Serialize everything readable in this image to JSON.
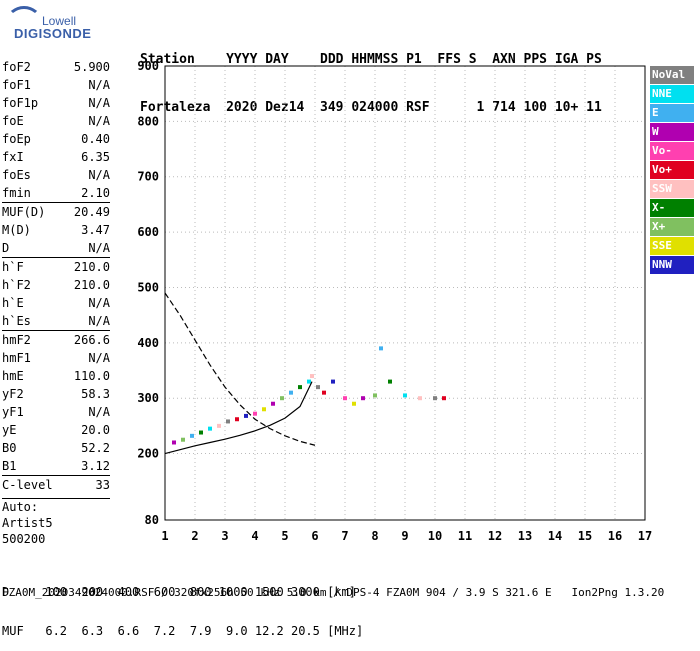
{
  "logo": {
    "line1": "Lowell",
    "line2": "DIGISONDE"
  },
  "header": {
    "row1": "Station    YYYY DAY    DDD HHMMSS P1  FFS S  AXN PPS IGA PS",
    "row2": "Fortaleza  2020 Dez14  349 024000 RSF      1 714 100 10+ 11"
  },
  "params": [
    {
      "label": "foF2",
      "value": "5.900"
    },
    {
      "label": "foF1",
      "value": "N/A"
    },
    {
      "label": "foF1p",
      "value": "N/A"
    },
    {
      "label": "foE",
      "value": "N/A"
    },
    {
      "label": "foEp",
      "value": "0.40"
    },
    {
      "label": "fxI",
      "value": "6.35"
    },
    {
      "label": "foEs",
      "value": "N/A"
    },
    {
      "label": "fmin",
      "value": "2.10"
    },
    {
      "label": "MUF(D)",
      "value": "20.49"
    },
    {
      "label": "M(D)",
      "value": "3.47"
    },
    {
      "label": "D",
      "value": "N/A"
    },
    {
      "label": "h`F",
      "value": "210.0"
    },
    {
      "label": "h`F2",
      "value": "210.0"
    },
    {
      "label": "h`E",
      "value": "N/A"
    },
    {
      "label": "h`Es",
      "value": "N/A"
    },
    {
      "label": "hmF2",
      "value": "266.6"
    },
    {
      "label": "hmF1",
      "value": "N/A"
    },
    {
      "label": "hmE",
      "value": "110.0"
    },
    {
      "label": "yF2",
      "value": "58.3"
    },
    {
      "label": "yF1",
      "value": "N/A"
    },
    {
      "label": "yE",
      "value": "20.0"
    },
    {
      "label": "B0",
      "value": "52.2"
    },
    {
      "label": "B1",
      "value": "3.12"
    },
    {
      "label": "C-level",
      "value": "33"
    }
  ],
  "auto": {
    "line1": "Auto:",
    "line2": "Artist5",
    "line3": "500200"
  },
  "legend": [
    {
      "label": "NoVal",
      "color": "#808080"
    },
    {
      "label": "NNE",
      "color": "#00e0f0"
    },
    {
      "label": "E",
      "color": "#40b0f0"
    },
    {
      "label": "W",
      "color": "#b000b0"
    },
    {
      "label": "Vo-",
      "color": "#ff40b0"
    },
    {
      "label": "Vo+",
      "color": "#e00020"
    },
    {
      "label": "SSW",
      "color": "#ffc0c0"
    },
    {
      "label": "X-",
      "color": "#008000"
    },
    {
      "label": "X+",
      "color": "#80c060"
    },
    {
      "label": "SSE",
      "color": "#e0e000"
    },
    {
      "label": "NNW",
      "color": "#2020c0"
    }
  ],
  "footer": {
    "row1": "D     100  200  400  600  800 1000 1500 3000 [km]",
    "row2": "MUF   6.2  6.3  6.6  7.2  7.9  9.0 12.2 20.5 [MHz]",
    "filename": "FZA0M_2020349024000.RSF / 320fx256h 50 kHz 5.0 km / DPS-4 FZA0M 904 / 3.9 S 321.6 E   Ion2Png 1.3.20"
  },
  "chart_data": {
    "type": "scatter",
    "title": "",
    "xlabel": "",
    "ylabel": "",
    "xlim": [
      1,
      17
    ],
    "ylim": [
      80,
      900
    ],
    "xticks": [
      1,
      2,
      3,
      4,
      5,
      6,
      7,
      8,
      9,
      10,
      11,
      12,
      13,
      14,
      15,
      16,
      17
    ],
    "yticks": [
      80,
      200,
      300,
      400,
      500,
      600,
      700,
      800,
      900
    ],
    "grid": true,
    "series": [
      {
        "name": "trace",
        "x": [
          1.3,
          1.6,
          1.9,
          2.2,
          2.5,
          2.8,
          3.1,
          3.4,
          3.7,
          4.0,
          4.3,
          4.6,
          4.9,
          5.2,
          5.5,
          5.8,
          5.9,
          6.1,
          6.3,
          6.6,
          7.0,
          7.3,
          7.6,
          8.0,
          8.2,
          8.5,
          9.0,
          9.5,
          10.0,
          10.3
        ],
        "y": [
          220,
          225,
          232,
          238,
          245,
          250,
          258,
          262,
          268,
          272,
          280,
          290,
          300,
          310,
          320,
          330,
          340,
          320,
          310,
          330,
          300,
          290,
          300,
          305,
          390,
          330,
          305,
          300,
          300,
          300
        ]
      }
    ],
    "profile_curve": {
      "x": [
        1.0,
        1.5,
        2.0,
        2.5,
        3.0,
        3.5,
        4.0,
        4.5,
        5.0,
        5.5,
        5.9
      ],
      "y": [
        200,
        207,
        214,
        220,
        226,
        233,
        241,
        251,
        264,
        285,
        330
      ]
    },
    "mufd_curve": {
      "x": [
        1.0,
        1.5,
        2.0,
        2.5,
        3.0,
        3.5,
        4.0,
        4.5,
        5.0,
        5.5,
        6.0
      ],
      "y": [
        490,
        450,
        405,
        360,
        320,
        288,
        262,
        245,
        232,
        222,
        215
      ]
    }
  }
}
